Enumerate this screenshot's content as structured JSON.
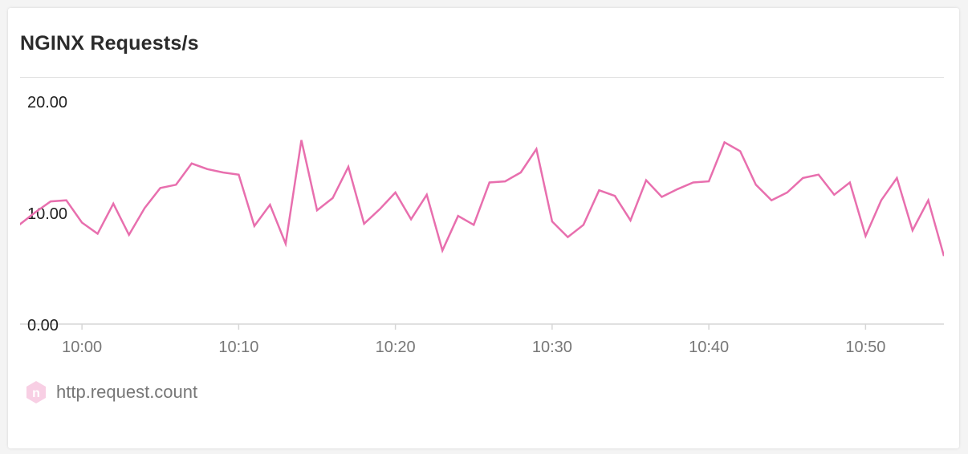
{
  "card": {
    "title": "NGINX Requests/s"
  },
  "legend": {
    "label": "http.request.count",
    "icon": "nginx-hexagon-icon",
    "icon_letter": "n"
  },
  "colors": {
    "series": "#e86fae",
    "legend_icon_bg": "#f8cfe4",
    "legend_icon_fg": "#ffffff",
    "axis": "#d6d6d6",
    "tick_text": "#777777",
    "y_text": "#222222"
  },
  "chart_data": {
    "type": "line",
    "title": "NGINX Requests/s",
    "xlabel": "",
    "ylabel": "",
    "ylim": [
      0,
      20
    ],
    "y_ticks": [
      "0.00",
      "10.00",
      "20.00"
    ],
    "x_ticks": [
      "10:00",
      "10:10",
      "10:20",
      "10:30",
      "10:40",
      "10:50"
    ],
    "x_unit": "minutes",
    "x_range": [
      "09:56",
      "10:55"
    ],
    "grid": false,
    "legend_position": "bottom-left",
    "series": [
      {
        "name": "http.request.count",
        "x": [
          "09:56",
          "09:57",
          "09:58",
          "09:59",
          "10:00",
          "10:01",
          "10:02",
          "10:03",
          "10:04",
          "10:05",
          "10:06",
          "10:07",
          "10:08",
          "10:09",
          "10:10",
          "10:11",
          "10:12",
          "10:13",
          "10:14",
          "10:15",
          "10:16",
          "10:17",
          "10:18",
          "10:19",
          "10:20",
          "10:21",
          "10:22",
          "10:23",
          "10:24",
          "10:25",
          "10:26",
          "10:27",
          "10:28",
          "10:29",
          "10:30",
          "10:31",
          "10:32",
          "10:33",
          "10:34",
          "10:35",
          "10:36",
          "10:37",
          "10:38",
          "10:39",
          "10:40",
          "10:41",
          "10:42",
          "10:43",
          "10:44",
          "10:45",
          "10:46",
          "10:47",
          "10:48",
          "10:49",
          "10:50",
          "10:51",
          "10:52",
          "10:53",
          "10:54",
          "10:55"
        ],
        "values": [
          8.9,
          10.0,
          11.0,
          11.1,
          9.1,
          8.1,
          10.8,
          8.0,
          10.4,
          12.2,
          12.5,
          14.4,
          13.9,
          13.6,
          13.4,
          8.8,
          10.7,
          7.2,
          16.5,
          10.2,
          11.3,
          14.1,
          9.0,
          10.3,
          11.8,
          9.4,
          11.6,
          6.6,
          9.7,
          8.9,
          12.7,
          12.8,
          13.6,
          15.7,
          9.2,
          7.8,
          8.9,
          12.0,
          11.5,
          9.3,
          12.9,
          11.4,
          12.1,
          12.7,
          12.8,
          16.3,
          15.5,
          12.5,
          11.1,
          11.8,
          13.1,
          13.4,
          11.6,
          12.7,
          7.9,
          11.1,
          13.1,
          8.4,
          11.1,
          6.1
        ]
      }
    ]
  }
}
